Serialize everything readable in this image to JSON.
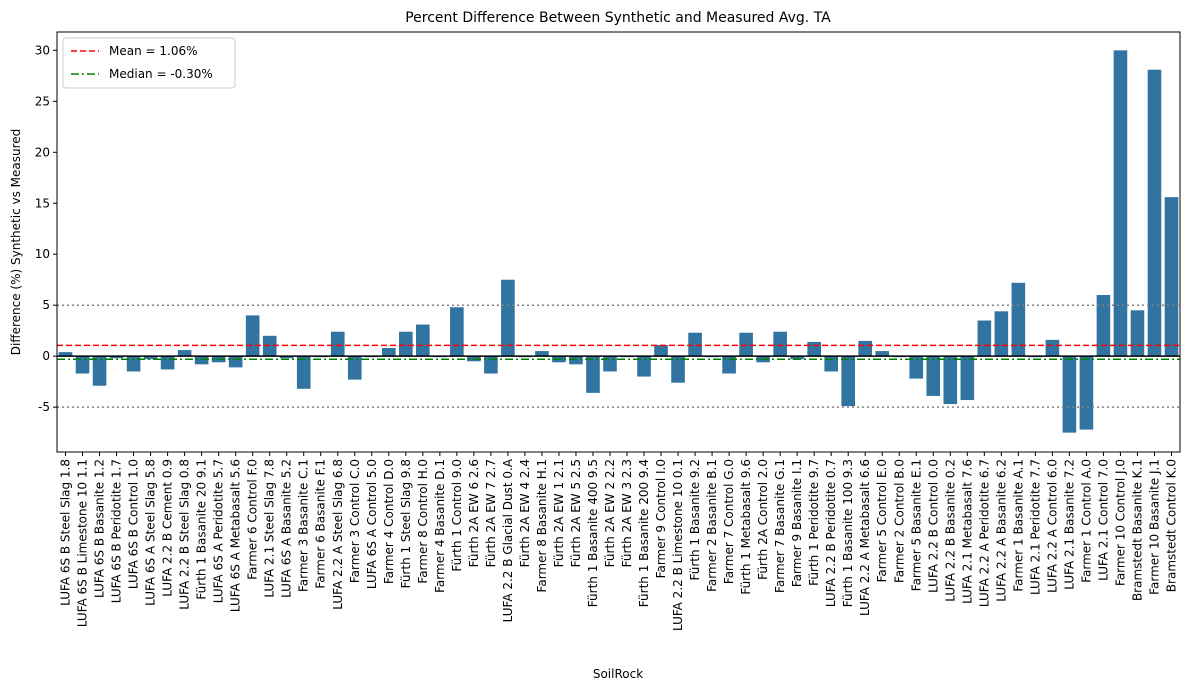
{
  "chart_data": {
    "type": "bar",
    "title": "Percent Difference Between Synthetic and Measured Avg. TA",
    "x_label": "SoilRock",
    "y_label": "Difference (%) Synthetic vs Measured",
    "color": "#3274a1",
    "categories": [
      "LUFA 6S B Steel Slag 1.8",
      "LUFA 6S B Limestone 10 1.1",
      "LUFA 6S B Basanite 1.2",
      "LUFA 6S B Peridotite 1.7",
      "LUFA 6S B Control 1.0",
      "LUFA 6S A Steel Slag 5.8",
      "LUFA 2.2 B Cement 0.9",
      "LUFA 2.2 B Steel Slag 0.8",
      "Fürth 1 Basanite 20 9.1",
      "LUFA 6S A Peridotite 5.7",
      "LUFA 6S A Metabasalt 5.6",
      "Farmer 6 Control F.0",
      "LUFA 2.1 Steel Slag 7.8",
      "LUFA 6S A Basanite 5.2",
      "Farmer 3 Basanite C.1",
      "Farmer 6 Basanite F.1",
      "LUFA 2.2 A Steel Slag 6.8",
      "Farmer 3 Control C.0",
      "LUFA 6S A Control 5.0",
      "Farmer 4 Control D.0",
      "Fürth 1 Steel Slag 9.8",
      "Farmer 8 Control H.0",
      "Farmer 4 Basanite D.1",
      "Fürth 1 Control 9.0",
      "Fürth 2A EW 6 2.6",
      "Fürth 2A EW 7 2.7",
      "LUFA 2.2 B Glacial Dust 0.A",
      "Fürth 2A EW 4 2.4",
      "Farmer 8 Basanite H.1",
      "Fürth 2A EW 1 2.1",
      "Fürth 2A EW 5 2.5",
      "Fürth 1 Basanite 400 9.5",
      "Fürth 2A EW 2 2.2",
      "Fürth 2A EW 3 2.3",
      "Fürth 1 Basanite 200 9.4",
      "Farmer 9 Control I.0",
      "LUFA 2.2 B Limestone 10 0.1",
      "Fürth 1 Basanite 9.2",
      "Farmer 2 Basanite B.1",
      "Farmer 7 Control G.0",
      "Fürth 1 Metabasalt 9.6",
      "Fürth 2A Control 2.0",
      "Farmer 7 Basanite G.1",
      "Farmer 9 Basanite I.1",
      "Fürth 1 Peridotite 9.7",
      "LUFA 2.2 B Peridotite 0.7",
      "Fürth 1 Basanite 100 9.3",
      "LUFA 2.2 A Metabasalt 6.6",
      "Farmer 5 Control E.0",
      "Farmer 2 Control B.0",
      "Farmer 5 Basanite E.1",
      "LUFA 2.2 B Control 0.0",
      "LUFA 2.2 B Basanite 0.2",
      "LUFA 2.1 Metabasalt 7.6",
      "LUFA 2.2 A Peridotite 6.7",
      "LUFA 2.2 A Basanite 6.2",
      "Farmer 1 Basanite A.1",
      "LUFA 2.1 Peridotite 7.7",
      "LUFA 2.2 A Control 6.0",
      "LUFA 2.1 Basanite 7.2",
      "Farmer 1 Control A.0",
      "LUFA 2.1 Control 7.0",
      "Farmer 10 Control J.0",
      "Bramstedt Basanite K.1",
      "Farmer 10 Basanite J.1",
      "Bramstedt Control K.0"
    ],
    "values": [
      0.4,
      -1.7,
      -2.9,
      -0.2,
      -1.5,
      -0.3,
      -1.3,
      0.6,
      -0.8,
      -0.6,
      -1.1,
      4.0,
      2.0,
      -0.2,
      -3.2,
      -0.1,
      2.4,
      -2.3,
      -0.1,
      0.8,
      2.4,
      3.1,
      -0.1,
      4.8,
      -0.5,
      -1.7,
      7.5,
      -0.1,
      0.5,
      -0.6,
      -0.8,
      -3.6,
      -1.5,
      -0.1,
      -2.0,
      1.1,
      -2.6,
      2.3,
      -0.1,
      -1.7,
      2.3,
      -0.6,
      2.4,
      -0.3,
      1.4,
      -1.5,
      -4.9,
      1.5,
      0.5,
      -0.1,
      -2.2,
      -3.9,
      -4.7,
      -4.3,
      3.5,
      4.4,
      7.2,
      -0.1,
      1.6,
      -7.5,
      -7.2,
      6.0,
      30.0,
      4.5,
      28.1,
      15.6
    ],
    "ylim": [
      -9.4,
      31.8
    ],
    "yticks": [
      -5,
      0,
      5,
      10,
      15,
      20,
      25,
      30
    ],
    "reference_lines": [
      {
        "label": "Mean = 1.06%",
        "value": 1.06,
        "color": "#ff0000",
        "dash": "6 3"
      },
      {
        "label": "Median = -0.30%",
        "value": -0.3,
        "color": "#008000",
        "dash": "8 3 2 3"
      }
    ],
    "hlines": [
      {
        "value": 5,
        "color": "#808080",
        "dash": "2 3"
      },
      {
        "value": -5,
        "color": "#808080",
        "dash": "2 3"
      },
      {
        "value": 0,
        "color": "#000000",
        "dash": "none"
      }
    ],
    "legend": "upper left"
  }
}
